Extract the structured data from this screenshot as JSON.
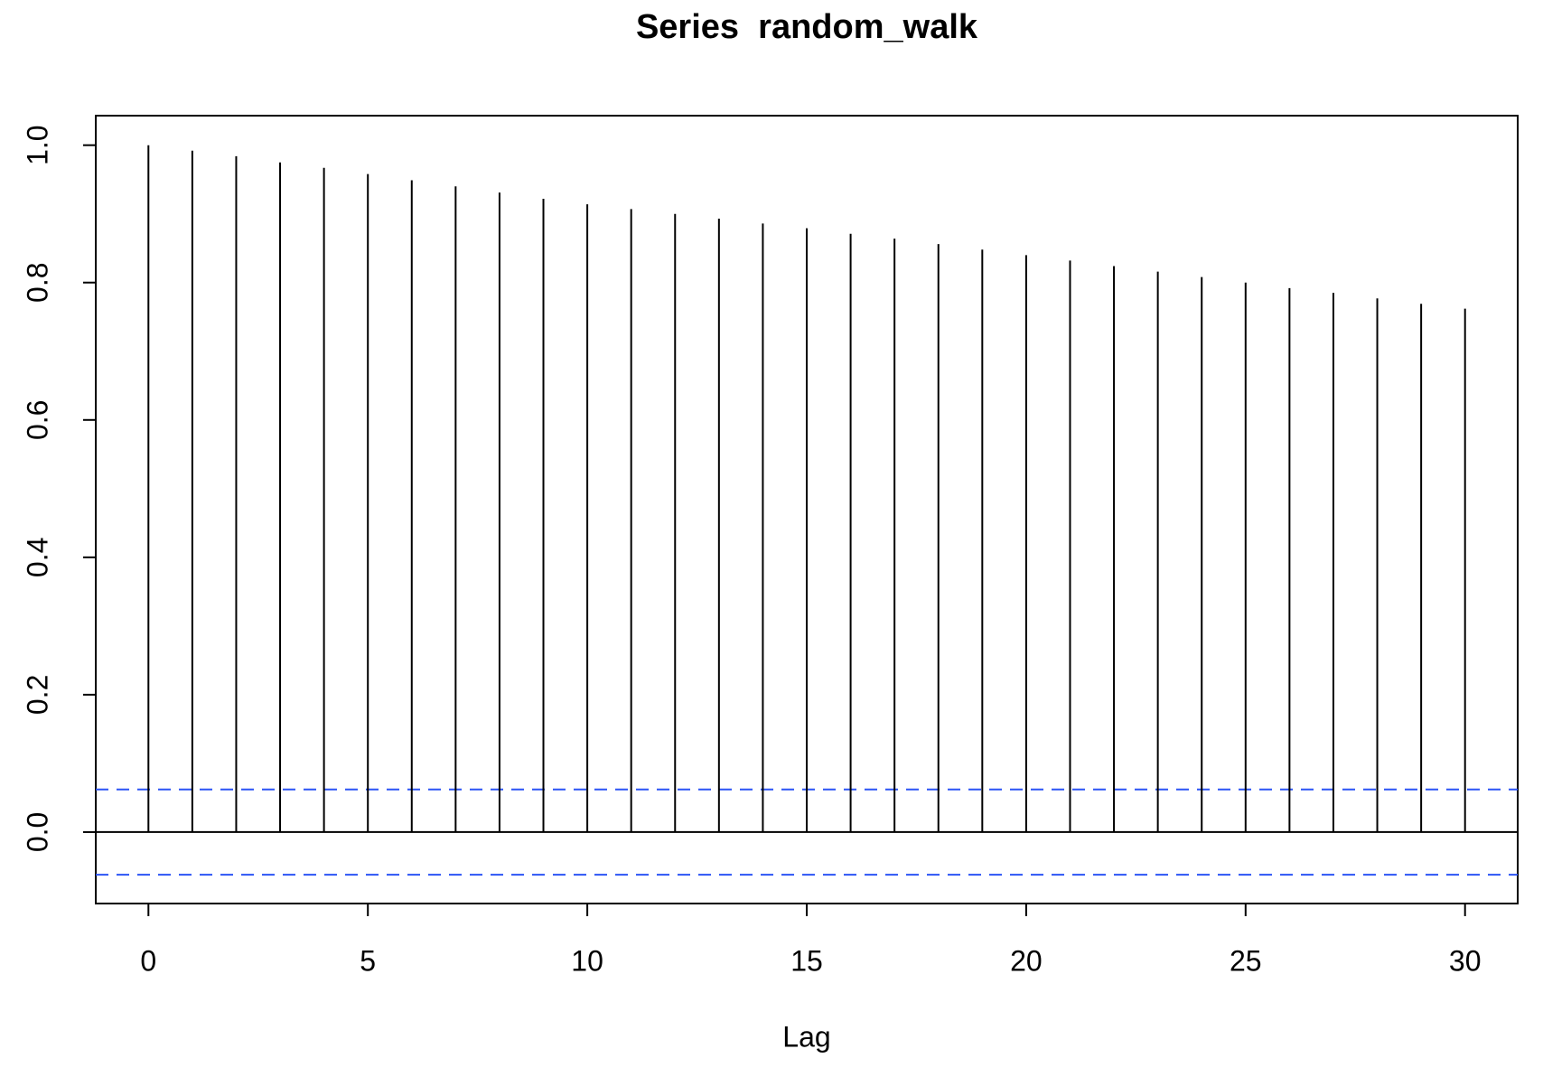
{
  "chart_data": {
    "type": "stem",
    "title": "Series  random_walk",
    "x_label": "Lag",
    "x": [
      0,
      1,
      2,
      3,
      4,
      5,
      6,
      7,
      8,
      9,
      10,
      11,
      12,
      13,
      14,
      15,
      16,
      17,
      18,
      19,
      20,
      21,
      22,
      23,
      24,
      25,
      26,
      27,
      28,
      29,
      30
    ],
    "values": [
      1.0,
      0.992,
      0.984,
      0.975,
      0.967,
      0.958,
      0.949,
      0.94,
      0.931,
      0.922,
      0.914,
      0.907,
      0.9,
      0.893,
      0.886,
      0.879,
      0.871,
      0.864,
      0.856,
      0.848,
      0.84,
      0.832,
      0.824,
      0.816,
      0.808,
      0.8,
      0.792,
      0.785,
      0.777,
      0.769,
      0.762
    ],
    "color": "#000000",
    "ci_upper": 0.062,
    "ci_lower": -0.062,
    "ci_color": "#2b54f5",
    "xlim": [
      -1.2,
      31.2
    ],
    "xticks": [
      0,
      5,
      10,
      15,
      20,
      25,
      30
    ],
    "ylim": [
      -0.104,
      1.043
    ],
    "yticks": [
      {
        "value": 0,
        "label": "0.0"
      },
      {
        "value": 0.2,
        "label": "0.2"
      },
      {
        "value": 0.4,
        "label": "0.4"
      },
      {
        "value": 0.6,
        "label": "0.6"
      },
      {
        "value": 0.8,
        "label": "0.8"
      },
      {
        "value": 1,
        "label": "1.0"
      }
    ]
  }
}
